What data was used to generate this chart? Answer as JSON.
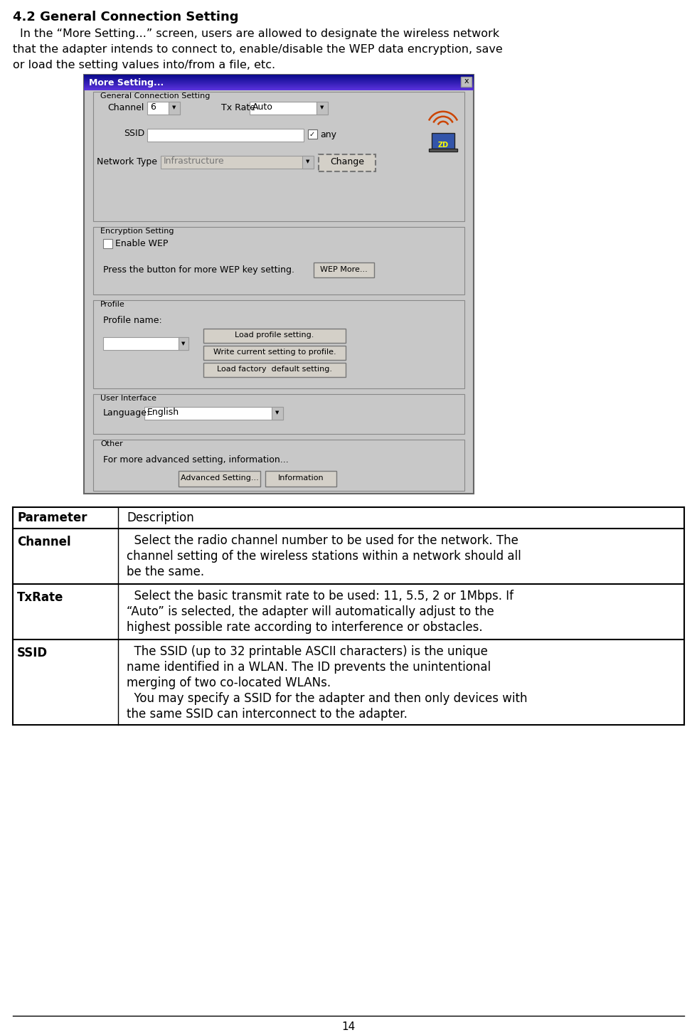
{
  "title": "4.2 General Connection Setting",
  "intro_line1": "In the “More Setting...” screen, users are allowed to designate the wireless network",
  "intro_line2": "that the adapter intends to connect to, enable/disable the WEP data encryption, save",
  "intro_line3": "or load the setting values into/from a file, etc.",
  "dialog_title": "More Setting...",
  "page_number": "14",
  "table_headers": [
    "Parameter",
    "Description"
  ],
  "table_rows": [
    {
      "param": "Channel",
      "desc_lines": [
        "  Select the radio channel number to be used for the network. The",
        "channel setting of the wireless stations within a network should all",
        "be the same."
      ]
    },
    {
      "param": "TxRate",
      "desc_lines": [
        "  Select the basic transmit rate to be used: 11, 5.5, 2 or 1Mbps. If",
        "“Auto” is selected, the adapter will automatically adjust to the",
        "highest possible rate according to interference or obstacles."
      ]
    },
    {
      "param": "SSID",
      "desc_lines": [
        "  The SSID (up to 32 printable ASCII characters) is the unique",
        "name identified in a WLAN. The ID prevents the unintentional",
        "merging of two co-located WLANs.",
        "  You may specify a SSID for the adapter and then only devices with",
        "the same SSID can interconnect to the adapter."
      ]
    }
  ],
  "bg_color": "#ffffff",
  "dialog_bg": "#c8c8c8",
  "font_size_title": 13,
  "font_size_body": 11.5,
  "font_size_table": 12,
  "font_size_dialog": 9
}
